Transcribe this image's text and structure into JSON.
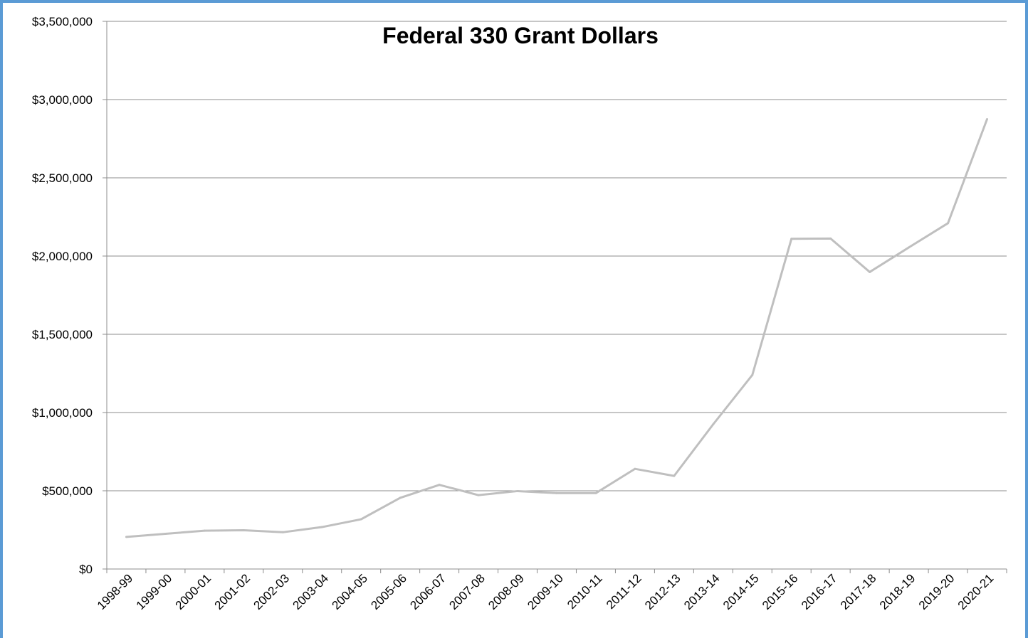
{
  "chart_data": {
    "type": "line",
    "title": "Federal 330 Grant Dollars",
    "xlabel": "",
    "ylabel": "",
    "ylim": [
      0,
      3500000
    ],
    "yticks": [
      {
        "value": 0,
        "label": "$0"
      },
      {
        "value": 500000,
        "label": "$500,000"
      },
      {
        "value": 1000000,
        "label": "$1,000,000"
      },
      {
        "value": 1500000,
        "label": "$1,500,000"
      },
      {
        "value": 2000000,
        "label": "$2,000,000"
      },
      {
        "value": 2500000,
        "label": "$2,500,000"
      },
      {
        "value": 3000000,
        "label": "$3,000,000"
      },
      {
        "value": 3500000,
        "label": "$3,500,000"
      }
    ],
    "grid": true,
    "legend": "none",
    "line_color": "#bfbfbf",
    "categories": [
      "1998-99",
      "1999-00",
      "2000-01",
      "2001-02",
      "2002-03",
      "2003-04",
      "2004-05",
      "2005-06",
      "2006-07",
      "2007-08",
      "2008-09",
      "2009-10",
      "2010-11",
      "2011-12",
      "2012-13",
      "2013-14",
      "2014-15",
      "2015-16",
      "2016-17",
      "2017-18",
      "2018-19",
      "2019-20",
      "2020-21"
    ],
    "series": [
      {
        "values": [
          205000,
          225000,
          245000,
          248000,
          235000,
          268000,
          318000,
          455000,
          538000,
          472000,
          498000,
          485000,
          485000,
          640000,
          595000,
          925000,
          1240000,
          2110000,
          2112000,
          1898000,
          2055000,
          2210000,
          2875000
        ]
      }
    ]
  }
}
